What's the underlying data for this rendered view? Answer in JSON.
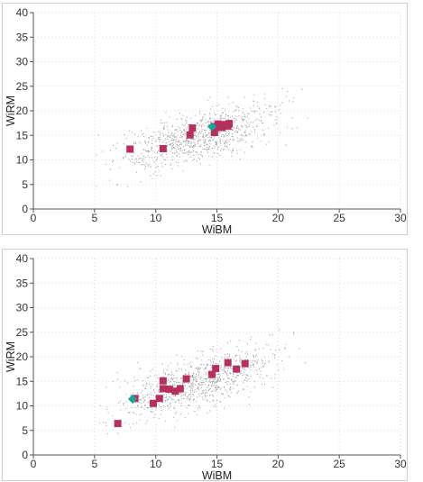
{
  "chart_data": [
    {
      "type": "scatter",
      "xlabel": "WiBM",
      "ylabel": "WiRM",
      "xlim": [
        0,
        30
      ],
      "ylim": [
        0,
        40
      ],
      "xticks": [
        "0",
        "5",
        "10",
        "15",
        "20",
        "25",
        "30"
      ],
      "yticks": [
        "0",
        "5",
        "10",
        "15",
        "20",
        "25",
        "30",
        "35",
        "40"
      ],
      "grid": true,
      "series": [
        {
          "role": "background",
          "marker": "dot",
          "color": "#9a9a9a",
          "cloud": {
            "x_range": [
              4,
              23
            ],
            "center_slope": 0.68,
            "center_intercept": 5.5,
            "spread": 2.6,
            "count": 900
          }
        },
        {
          "role": "highlighted",
          "marker": "square",
          "color": "#b5305e",
          "points": [
            [
              7.9,
              12.2
            ],
            [
              10.6,
              12.3
            ],
            [
              12.8,
              15.1
            ],
            [
              13.0,
              16.5
            ],
            [
              14.8,
              15.6
            ],
            [
              14.9,
              16.8
            ],
            [
              15.2,
              17.0
            ],
            [
              15.4,
              16.6
            ],
            [
              15.6,
              17.2
            ],
            [
              15.9,
              16.9
            ],
            [
              16.0,
              17.4
            ],
            [
              15.1,
              17.3
            ]
          ]
        },
        {
          "role": "reference",
          "marker": "diamond",
          "color": "#1ba39c",
          "points": [
            [
              14.6,
              16.8
            ]
          ]
        }
      ]
    },
    {
      "type": "scatter",
      "xlabel": "WiBM",
      "ylabel": "WiRM",
      "xlim": [
        0,
        30
      ],
      "ylim": [
        0,
        40
      ],
      "xticks": [
        "0",
        "5",
        "10",
        "15",
        "20",
        "25",
        "30"
      ],
      "yticks": [
        "0",
        "5",
        "10",
        "15",
        "20",
        "25",
        "30",
        "35",
        "40"
      ],
      "grid": true,
      "series": [
        {
          "role": "background",
          "marker": "dot",
          "color": "#9a9a9a",
          "cloud": {
            "x_range": [
              4,
              23
            ],
            "center_slope": 0.68,
            "center_intercept": 5.5,
            "spread": 2.6,
            "count": 900
          }
        },
        {
          "role": "highlighted",
          "marker": "square",
          "color": "#b5305e",
          "points": [
            [
              6.9,
              6.4
            ],
            [
              8.3,
              11.5
            ],
            [
              9.8,
              10.5
            ],
            [
              10.3,
              11.5
            ],
            [
              10.6,
              15.1
            ],
            [
              10.6,
              13.5
            ],
            [
              11.1,
              13.4
            ],
            [
              11.6,
              13.0
            ],
            [
              12.0,
              13.5
            ],
            [
              12.5,
              15.5
            ],
            [
              14.6,
              16.4
            ],
            [
              14.9,
              17.6
            ],
            [
              15.9,
              18.8
            ],
            [
              16.6,
              17.5
            ],
            [
              17.3,
              18.6
            ]
          ]
        },
        {
          "role": "reference",
          "marker": "diamond",
          "color": "#1ba39c",
          "points": [
            [
              8.1,
              11.4
            ]
          ]
        }
      ]
    }
  ]
}
